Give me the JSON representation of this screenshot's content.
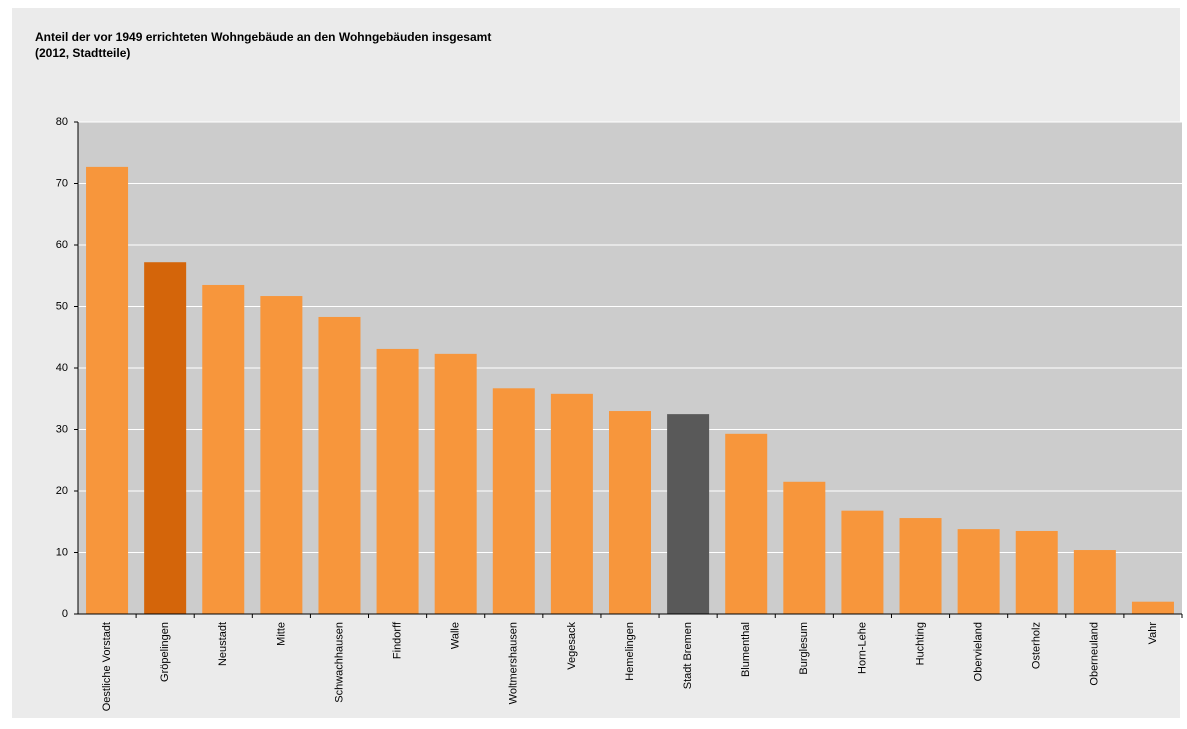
{
  "chart_data": {
    "type": "bar",
    "title": "Anteil der vor 1949 errichteten Wohngebäude an den Wohngebäuden insgesamt",
    "subtitle": "(2012, Stadtteile)",
    "categories": [
      "Oestliche Vorstadt",
      "Gröpelingen",
      "Neustadt",
      "Mitte",
      "Schwachhausen",
      "Findorff",
      "Walle",
      "Woltmershausen",
      "Vegesack",
      "Hemelingen",
      "Stadt Bremen",
      "Blumenthal",
      "Burglesum",
      "Horn-Lehe",
      "Huchting",
      "Obervieland",
      "Osterholz",
      "Oberneuland",
      "Vahr"
    ],
    "values": [
      72.7,
      57.2,
      53.5,
      51.7,
      48.3,
      43.1,
      42.3,
      36.7,
      35.8,
      33.0,
      32.5,
      29.3,
      21.5,
      16.8,
      15.6,
      13.8,
      13.5,
      10.4,
      2.0
    ],
    "colors": [
      "#f7963c",
      "#d4650a",
      "#f7963c",
      "#f7963c",
      "#f7963c",
      "#f7963c",
      "#f7963c",
      "#f7963c",
      "#f7963c",
      "#f7963c",
      "#595959",
      "#f7963c",
      "#f7963c",
      "#f7963c",
      "#f7963c",
      "#f7963c",
      "#f7963c",
      "#f7963c",
      "#f7963c"
    ],
    "ylim": [
      0,
      80
    ],
    "yticks": [
      0,
      10,
      20,
      30,
      40,
      50,
      60,
      70,
      80
    ],
    "grid": true
  }
}
